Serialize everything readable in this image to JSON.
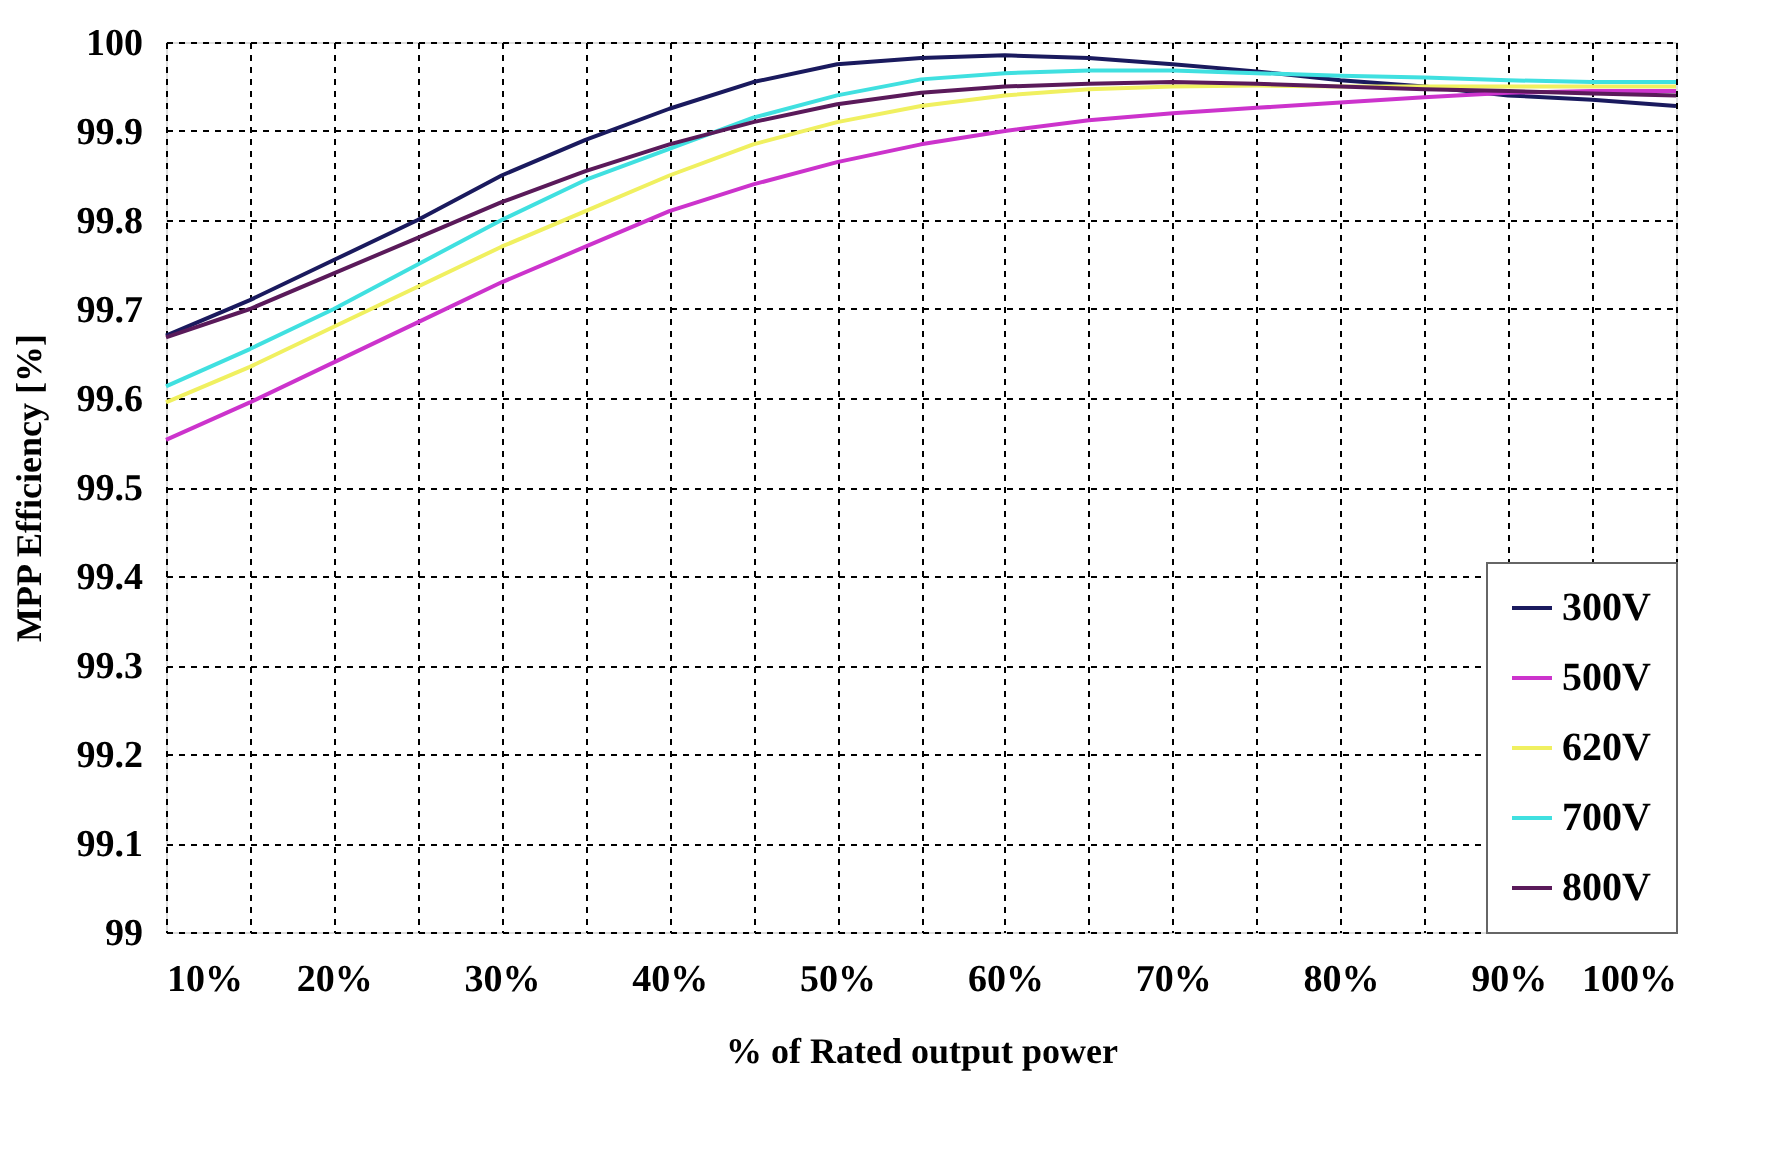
{
  "chart_data": {
    "type": "line",
    "xlabel": "% of Rated output power",
    "ylabel": "MPP Efficiency [%]",
    "x": [
      10,
      15,
      20,
      25,
      30,
      35,
      40,
      45,
      50,
      55,
      60,
      65,
      70,
      75,
      80,
      85,
      90,
      95,
      100
    ],
    "series": [
      {
        "name": "300V",
        "color": "#1a1a5e",
        "values": [
          99.67,
          99.71,
          99.755,
          99.8,
          99.85,
          99.89,
          99.925,
          99.955,
          99.975,
          99.982,
          99.985,
          99.982,
          99.975,
          99.967,
          99.957,
          99.95,
          99.94,
          99.935,
          99.928
        ]
      },
      {
        "name": "500V",
        "color": "#cc33cc",
        "values": [
          99.553,
          99.595,
          99.64,
          99.685,
          99.73,
          99.77,
          99.81,
          99.84,
          99.865,
          99.885,
          99.9,
          99.912,
          99.92,
          99.926,
          99.932,
          99.938,
          99.943,
          99.945,
          99.945
        ]
      },
      {
        "name": "620V",
        "color": "#f0f060",
        "values": [
          99.595,
          99.635,
          99.68,
          99.725,
          99.77,
          99.81,
          99.85,
          99.885,
          99.91,
          99.928,
          99.94,
          99.947,
          99.95,
          99.951,
          99.95,
          99.95,
          99.95,
          99.95,
          99.95
        ]
      },
      {
        "name": "700V",
        "color": "#40e0e0",
        "values": [
          99.613,
          99.655,
          99.7,
          99.75,
          99.8,
          99.845,
          99.88,
          99.915,
          99.94,
          99.958,
          99.965,
          99.968,
          99.968,
          99.965,
          99.962,
          99.96,
          99.957,
          99.955,
          99.955
        ]
      },
      {
        "name": "800V",
        "color": "#5a1a5a",
        "values": [
          99.668,
          99.7,
          99.74,
          99.78,
          99.82,
          99.855,
          99.885,
          99.91,
          99.93,
          99.943,
          99.95,
          99.953,
          99.955,
          99.953,
          99.95,
          99.947,
          99.945,
          99.942,
          99.94
        ]
      }
    ],
    "xlim": [
      10,
      100
    ],
    "xticks": [
      {
        "value": 10,
        "label": "10%"
      },
      {
        "value": 15,
        "label": null
      },
      {
        "value": 20,
        "label": "20%"
      },
      {
        "value": 25,
        "label": null
      },
      {
        "value": 30,
        "label": "30%"
      },
      {
        "value": 35,
        "label": null
      },
      {
        "value": 40,
        "label": "40%"
      },
      {
        "value": 45,
        "label": null
      },
      {
        "value": 50,
        "label": "50%"
      },
      {
        "value": 55,
        "label": null
      },
      {
        "value": 60,
        "label": "60%"
      },
      {
        "value": 65,
        "label": null
      },
      {
        "value": 70,
        "label": "70%"
      },
      {
        "value": 75,
        "label": null
      },
      {
        "value": 80,
        "label": "80%"
      },
      {
        "value": 85,
        "label": null
      },
      {
        "value": 90,
        "label": "90%"
      },
      {
        "value": 95,
        "label": null
      },
      {
        "value": 100,
        "label": "100%"
      }
    ],
    "ylim": [
      99,
      100
    ],
    "yticks": [
      99,
      99.1,
      99.2,
      99.3,
      99.4,
      99.5,
      99.6,
      99.7,
      99.8,
      99.9,
      100
    ],
    "grid": true,
    "legend": "bottom right",
    "marker": "none",
    "line_style": "solid"
  }
}
